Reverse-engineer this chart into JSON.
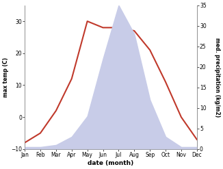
{
  "months": [
    "Jan",
    "Feb",
    "Mar",
    "Apr",
    "May",
    "Jun",
    "Jul",
    "Aug",
    "Sep",
    "Oct",
    "Nov",
    "Dec"
  ],
  "temp": [
    -8,
    -5,
    2,
    12,
    30,
    28,
    28,
    27,
    21,
    11,
    0,
    -7
  ],
  "precip": [
    0.5,
    0.5,
    1,
    3,
    8,
    22,
    35,
    28,
    12,
    3,
    0.5,
    0.5
  ],
  "temp_color": "#c0392b",
  "precip_fill_color": "#c8cce8",
  "temp_ylim": [
    -10,
    35
  ],
  "precip_ylim": [
    0,
    35
  ],
  "temp_yticks": [
    -10,
    0,
    10,
    20,
    30
  ],
  "precip_yticks": [
    0,
    5,
    10,
    15,
    20,
    25,
    30,
    35
  ],
  "xlabel": "date (month)",
  "ylabel_left": "max temp (C)",
  "ylabel_right": "med. precipitation (kg/m2)",
  "background_color": "#ffffff",
  "figsize": [
    3.26,
    2.47
  ],
  "dpi": 100
}
